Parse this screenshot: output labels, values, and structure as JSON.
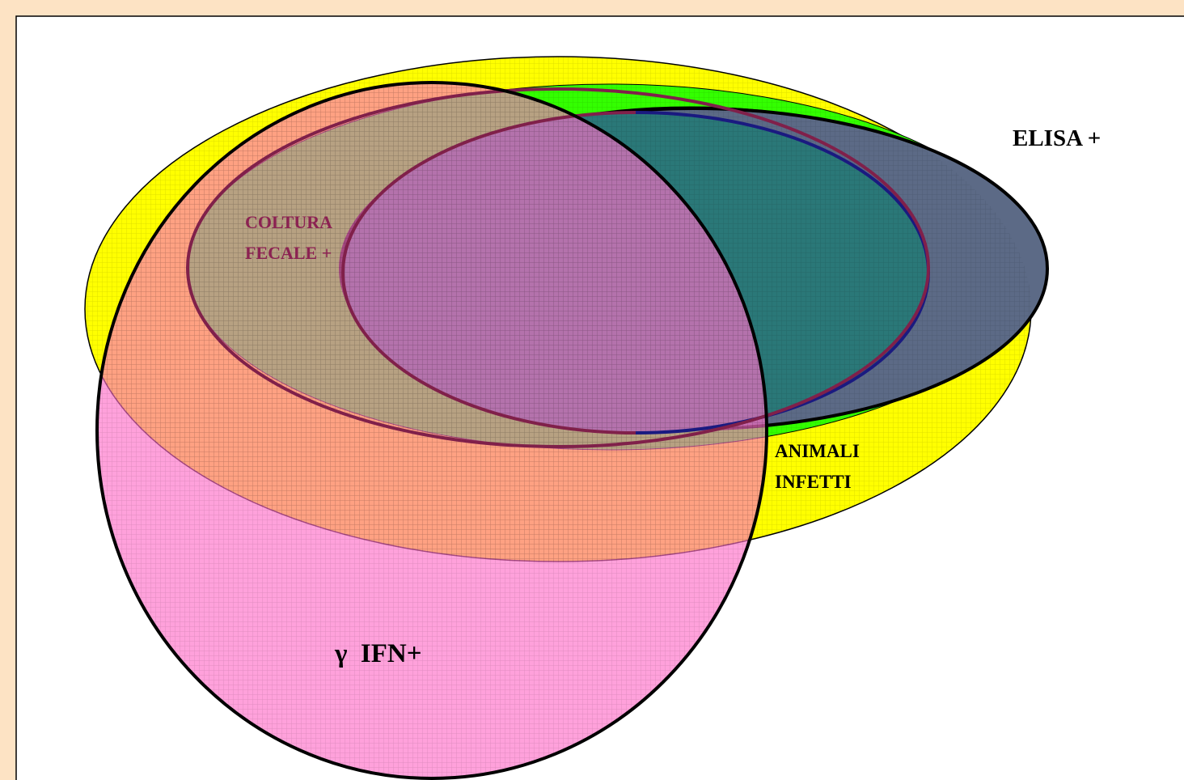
{
  "nodes": [
    {
      "label": "ELISA +"
    },
    {
      "label": [
        "COLTURA",
        "FECALE +"
      ]
    },
    {
      "label": [
        "ANIMALI",
        "INFETTI"
      ]
    },
    {
      "label": "γ  IFN+"
    }
  ]
}
